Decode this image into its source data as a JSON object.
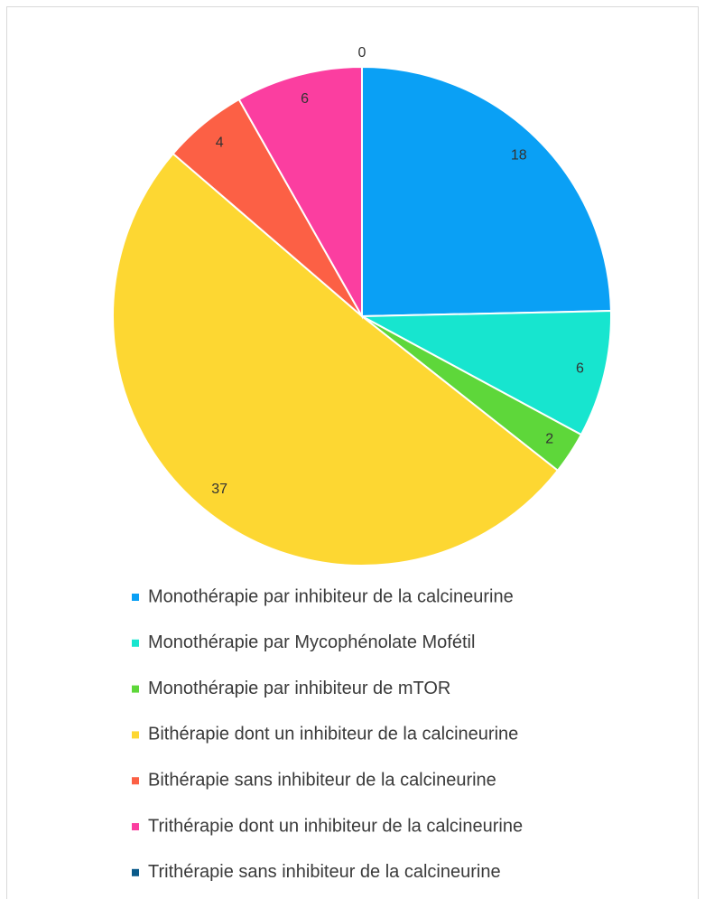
{
  "chart_data": {
    "type": "pie",
    "categories": [
      "Monothérapie par inhibiteur de la calcineurine",
      "Monothérapie par Mycophénolate Mofétil",
      "Monothérapie par inhibiteur de mTOR",
      "Bithérapie dont un inhibiteur de la calcineurine",
      "Bithérapie sans inhibiteur de la calcineurine",
      "Trithérapie dont un inhibiteur de la calcineurine",
      "Trithérapie sans inhibiteur de la calcineurine"
    ],
    "values": [
      18,
      6,
      2,
      37,
      4,
      6,
      0
    ],
    "colors": [
      "#0aa0f5",
      "#17e5cf",
      "#5ed73a",
      "#fdd732",
      "#fc6045",
      "#fb3ea0",
      "#0a5a8a"
    ],
    "legend": "bottom"
  }
}
